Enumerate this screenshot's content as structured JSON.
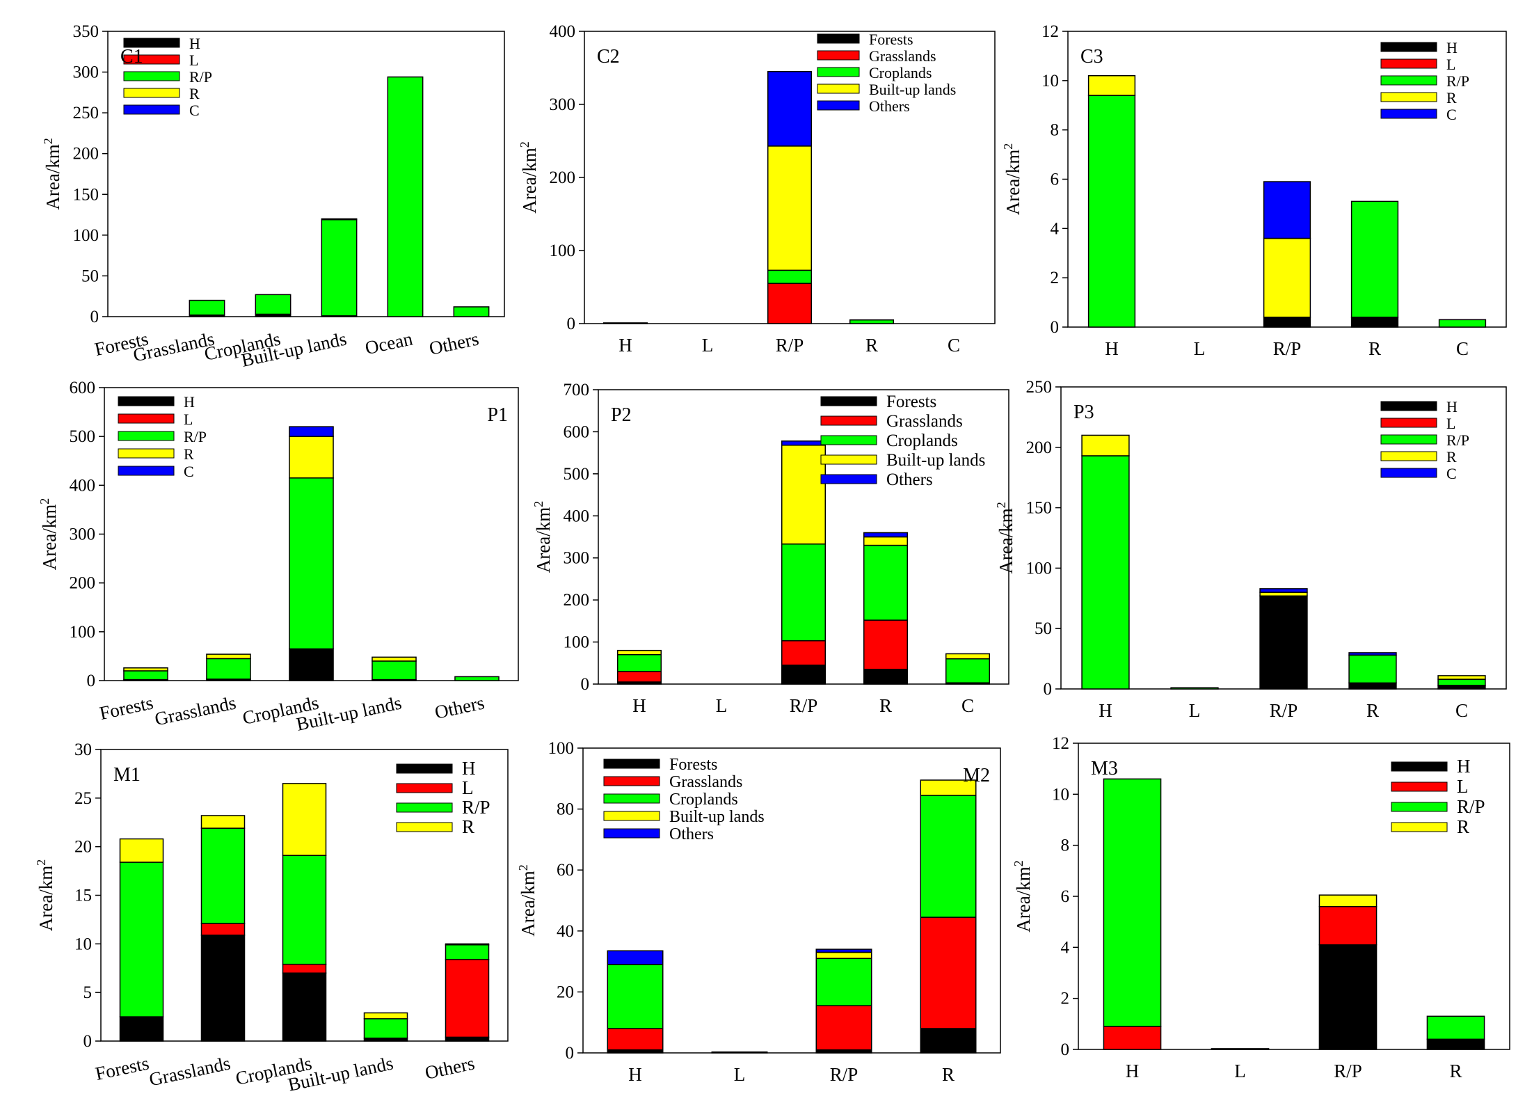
{
  "colors": {
    "H": "#000000",
    "L": "#ff0000",
    "R/P": "#00ff00",
    "R": "#ffff00",
    "C": "#0000ff",
    "Forests": "#000000",
    "Grasslands": "#ff0000",
    "Croplands": "#00ff00",
    "Built-up lands": "#ffff00",
    "Others": "#0000ff"
  },
  "chart_data": [
    {
      "panel": "C1",
      "type": "bar",
      "stacked": true,
      "categories": [
        "Forests",
        "Grasslands",
        "Croplands",
        "Built-up lands",
        "Ocean",
        "Others"
      ],
      "ylabel": "Area/km2",
      "ylim": [
        0,
        350
      ],
      "yticks": [
        0,
        50,
        100,
        150,
        200,
        250,
        300,
        350
      ],
      "legend": {
        "placement": "top-left",
        "entries": [
          "H",
          "L",
          "R/P",
          "R",
          "C"
        ]
      },
      "series": [
        {
          "name": "H",
          "values": [
            0,
            2,
            3,
            1,
            0,
            0
          ]
        },
        {
          "name": "L",
          "values": [
            0,
            0,
            0,
            0,
            0,
            0
          ]
        },
        {
          "name": "R/P",
          "values": [
            0,
            18,
            24,
            118,
            294,
            12
          ]
        },
        {
          "name": "R",
          "values": [
            0,
            0,
            0,
            1,
            0,
            0
          ]
        },
        {
          "name": "C",
          "values": [
            0,
            0,
            0,
            0,
            0,
            0
          ]
        }
      ]
    },
    {
      "panel": "C2",
      "type": "bar",
      "stacked": true,
      "categories": [
        "H",
        "L",
        "R/P",
        "R",
        "C"
      ],
      "ylabel": "Area/km2",
      "ylim": [
        0,
        400
      ],
      "yticks": [
        0,
        100,
        200,
        300,
        400
      ],
      "legend": {
        "placement": "top-right",
        "entries": [
          "Forests",
          "Grasslands",
          "Croplands",
          "Built-up lands",
          "Others"
        ]
      },
      "series": [
        {
          "name": "Forests",
          "values": [
            0,
            0,
            0,
            0,
            0
          ]
        },
        {
          "name": "Grasslands",
          "values": [
            0,
            0,
            55,
            0,
            0
          ]
        },
        {
          "name": "Croplands",
          "values": [
            1,
            0,
            18,
            5,
            0
          ]
        },
        {
          "name": "Built-up lands",
          "values": [
            0,
            0,
            170,
            0,
            0
          ]
        },
        {
          "name": "Others",
          "values": [
            0,
            0,
            102,
            0,
            0
          ]
        }
      ]
    },
    {
      "panel": "C3",
      "type": "bar",
      "stacked": true,
      "categories": [
        "H",
        "L",
        "R/P",
        "R",
        "C"
      ],
      "ylabel": "Area/km2",
      "ylim": [
        0,
        12
      ],
      "yticks": [
        0,
        2,
        4,
        6,
        8,
        10,
        12
      ],
      "legend": {
        "placement": "top-right",
        "entries": [
          "H",
          "L",
          "R/P",
          "R",
          "C"
        ]
      },
      "series": [
        {
          "name": "H",
          "values": [
            0,
            0,
            0.4,
            0.4,
            0
          ]
        },
        {
          "name": "L",
          "values": [
            0,
            0,
            0,
            0,
            0
          ]
        },
        {
          "name": "R/P",
          "values": [
            9.4,
            0,
            0,
            4.7,
            0.3
          ]
        },
        {
          "name": "R",
          "values": [
            0.8,
            0,
            3.2,
            0,
            0
          ]
        },
        {
          "name": "C",
          "values": [
            0,
            0,
            2.3,
            0,
            0
          ]
        }
      ]
    },
    {
      "panel": "P1",
      "type": "bar",
      "stacked": true,
      "categories": [
        "Forests",
        "Grasslands",
        "Croplands",
        "Built-up lands",
        "Others"
      ],
      "ylabel": "Area/km2",
      "ylim": [
        0,
        600
      ],
      "yticks": [
        0,
        100,
        200,
        300,
        400,
        500,
        600
      ],
      "legend": {
        "placement": "top-left",
        "entries": [
          "H",
          "L",
          "R/P",
          "R",
          "C"
        ]
      },
      "series": [
        {
          "name": "H",
          "values": [
            2,
            3,
            65,
            2,
            0
          ]
        },
        {
          "name": "L",
          "values": [
            0,
            0,
            0,
            0,
            0
          ]
        },
        {
          "name": "R/P",
          "values": [
            18,
            42,
            350,
            38,
            8
          ]
        },
        {
          "name": "R",
          "values": [
            6,
            9,
            85,
            8,
            0
          ]
        },
        {
          "name": "C",
          "values": [
            0,
            0,
            20,
            0,
            0
          ]
        }
      ]
    },
    {
      "panel": "P2",
      "type": "bar",
      "stacked": true,
      "categories": [
        "H",
        "L",
        "R/P",
        "R",
        "C"
      ],
      "ylabel": "Area/km2",
      "ylim": [
        0,
        700
      ],
      "yticks": [
        0,
        100,
        200,
        300,
        400,
        500,
        600,
        700
      ],
      "legend": {
        "placement": "top-right",
        "entries": [
          "Forests",
          "Grasslands",
          "Croplands",
          "Built-up lands",
          "Others"
        ]
      },
      "series": [
        {
          "name": "Forests",
          "values": [
            5,
            0,
            45,
            35,
            3
          ]
        },
        {
          "name": "Grasslands",
          "values": [
            25,
            0,
            58,
            117,
            0
          ]
        },
        {
          "name": "Croplands",
          "values": [
            40,
            0,
            230,
            178,
            57
          ]
        },
        {
          "name": "Built-up lands",
          "values": [
            10,
            0,
            235,
            20,
            12
          ]
        },
        {
          "name": "Others",
          "values": [
            0,
            0,
            10,
            10,
            0
          ]
        }
      ]
    },
    {
      "panel": "P3",
      "type": "bar",
      "stacked": true,
      "categories": [
        "H",
        "L",
        "R/P",
        "R",
        "C"
      ],
      "ylabel": "Area/km2",
      "ylim": [
        0,
        250
      ],
      "yticks": [
        0,
        50,
        100,
        150,
        200,
        250
      ],
      "legend": {
        "placement": "top-right",
        "entries": [
          "H",
          "L",
          "R/P",
          "R",
          "C"
        ]
      },
      "series": [
        {
          "name": "H",
          "values": [
            0,
            0,
            77,
            5,
            3
          ]
        },
        {
          "name": "L",
          "values": [
            0,
            0,
            0,
            0,
            0
          ]
        },
        {
          "name": "R/P",
          "values": [
            193,
            1,
            0,
            23,
            5
          ]
        },
        {
          "name": "R",
          "values": [
            17,
            0,
            3,
            0,
            3
          ]
        },
        {
          "name": "C",
          "values": [
            0,
            0,
            3,
            2,
            0
          ]
        }
      ]
    },
    {
      "panel": "M1",
      "type": "bar",
      "stacked": true,
      "categories": [
        "Forests",
        "Grasslands",
        "Croplands",
        "Built-up lands",
        "Others"
      ],
      "ylabel": "Area/km2",
      "ylim": [
        0,
        30
      ],
      "yticks": [
        0,
        5,
        10,
        15,
        20,
        25,
        30
      ],
      "legend": {
        "placement": "top-right",
        "entries": [
          "H",
          "L",
          "R/P",
          "R"
        ]
      },
      "series": [
        {
          "name": "H",
          "values": [
            2.5,
            10.9,
            7.0,
            0.3,
            0.4
          ]
        },
        {
          "name": "L",
          "values": [
            0,
            1.2,
            0.9,
            0,
            8.0
          ]
        },
        {
          "name": "R/P",
          "values": [
            15.9,
            9.8,
            11.2,
            2.0,
            1.5
          ]
        },
        {
          "name": "R",
          "values": [
            2.4,
            1.3,
            7.4,
            0.6,
            0.1
          ]
        }
      ]
    },
    {
      "panel": "M2",
      "type": "bar",
      "stacked": true,
      "categories": [
        "H",
        "L",
        "R/P",
        "R"
      ],
      "ylabel": "Area/km2",
      "ylim": [
        0,
        100
      ],
      "yticks": [
        0,
        20,
        40,
        60,
        80,
        100
      ],
      "legend": {
        "placement": "top-left",
        "entries": [
          "Forests",
          "Grasslands",
          "Croplands",
          "Built-up lands",
          "Others"
        ]
      },
      "series": [
        {
          "name": "Forests",
          "values": [
            1,
            0.3,
            1,
            8
          ]
        },
        {
          "name": "Grasslands",
          "values": [
            7,
            0,
            14.5,
            36.5
          ]
        },
        {
          "name": "Croplands",
          "values": [
            21,
            0,
            15.5,
            40
          ]
        },
        {
          "name": "Built-up lands",
          "values": [
            0,
            0,
            2,
            5
          ]
        },
        {
          "name": "Others",
          "values": [
            4.5,
            0,
            1,
            0
          ]
        }
      ]
    },
    {
      "panel": "M3",
      "type": "bar",
      "stacked": true,
      "categories": [
        "H",
        "L",
        "R/P",
        "R"
      ],
      "ylabel": "Area/km2",
      "ylim": [
        0,
        12
      ],
      "yticks": [
        0,
        2,
        4,
        6,
        8,
        10,
        12
      ],
      "legend": {
        "placement": "top-right",
        "entries": [
          "H",
          "L",
          "R/P",
          "R"
        ]
      },
      "series": [
        {
          "name": "H",
          "values": [
            0,
            0.03,
            4.1,
            0.4
          ]
        },
        {
          "name": "L",
          "values": [
            0.9,
            0,
            1.5,
            0
          ]
        },
        {
          "name": "R/P",
          "values": [
            9.7,
            0,
            0,
            0.9
          ]
        },
        {
          "name": "R",
          "values": [
            0,
            0,
            0.45,
            0
          ]
        }
      ]
    }
  ]
}
